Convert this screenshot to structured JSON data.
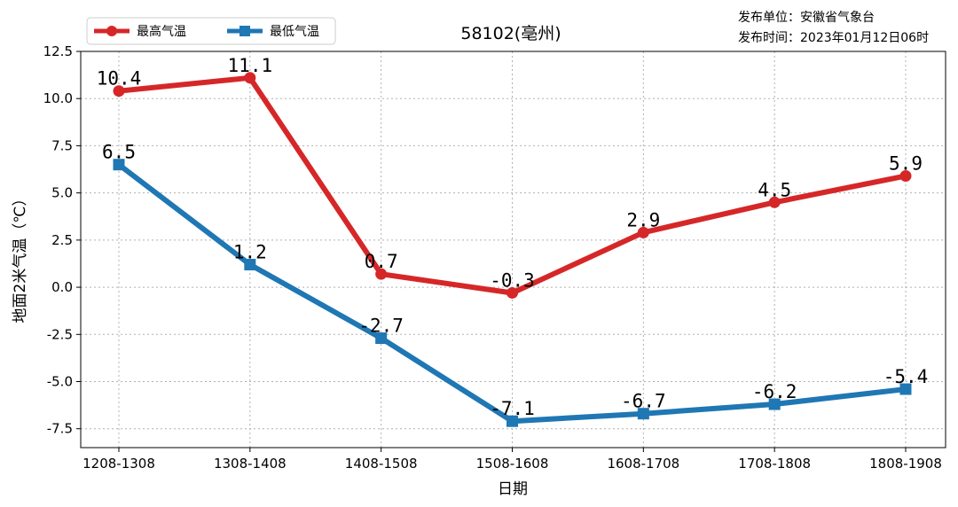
{
  "chart_data": {
    "type": "line",
    "title": "58102(亳州)",
    "publisher": "发布单位：安徽省气象台",
    "publish_time": "发布时间：2023年01月12日06时",
    "xlabel": "日期",
    "ylabel": "地面2米气温（℃）",
    "categories": [
      "1208-1308",
      "1308-1408",
      "1408-1508",
      "1508-1608",
      "1608-1708",
      "1708-1808",
      "1808-1908"
    ],
    "ylim": [
      -8.5,
      12.5
    ],
    "yticks": [
      "12.5",
      "10.0",
      "7.5",
      "5.0",
      "2.5",
      "0.0",
      "-2.5",
      "-5.0",
      "-7.5"
    ],
    "ytick_values": [
      12.5,
      10.0,
      7.5,
      5.0,
      2.5,
      0.0,
      -2.5,
      -5.0,
      -7.5
    ],
    "grid": true,
    "legend_position": "top-left",
    "series": [
      {
        "name": "最高气温",
        "color": "#d62728",
        "marker": "circle",
        "values": [
          10.4,
          11.1,
          0.7,
          -0.3,
          2.9,
          4.5,
          5.9
        ],
        "labels": [
          "10.4",
          "11.1",
          "0.7",
          "-0.3",
          "2.9",
          "4.5",
          "5.9"
        ]
      },
      {
        "name": "最低气温",
        "color": "#1f77b4",
        "marker": "square",
        "values": [
          6.5,
          1.2,
          -2.7,
          -7.1,
          -6.7,
          -6.2,
          -5.4
        ],
        "labels": [
          "6.5",
          "1.2",
          "-2.7",
          "-7.1",
          "-6.7",
          "-6.2",
          "-5.4"
        ]
      }
    ]
  }
}
